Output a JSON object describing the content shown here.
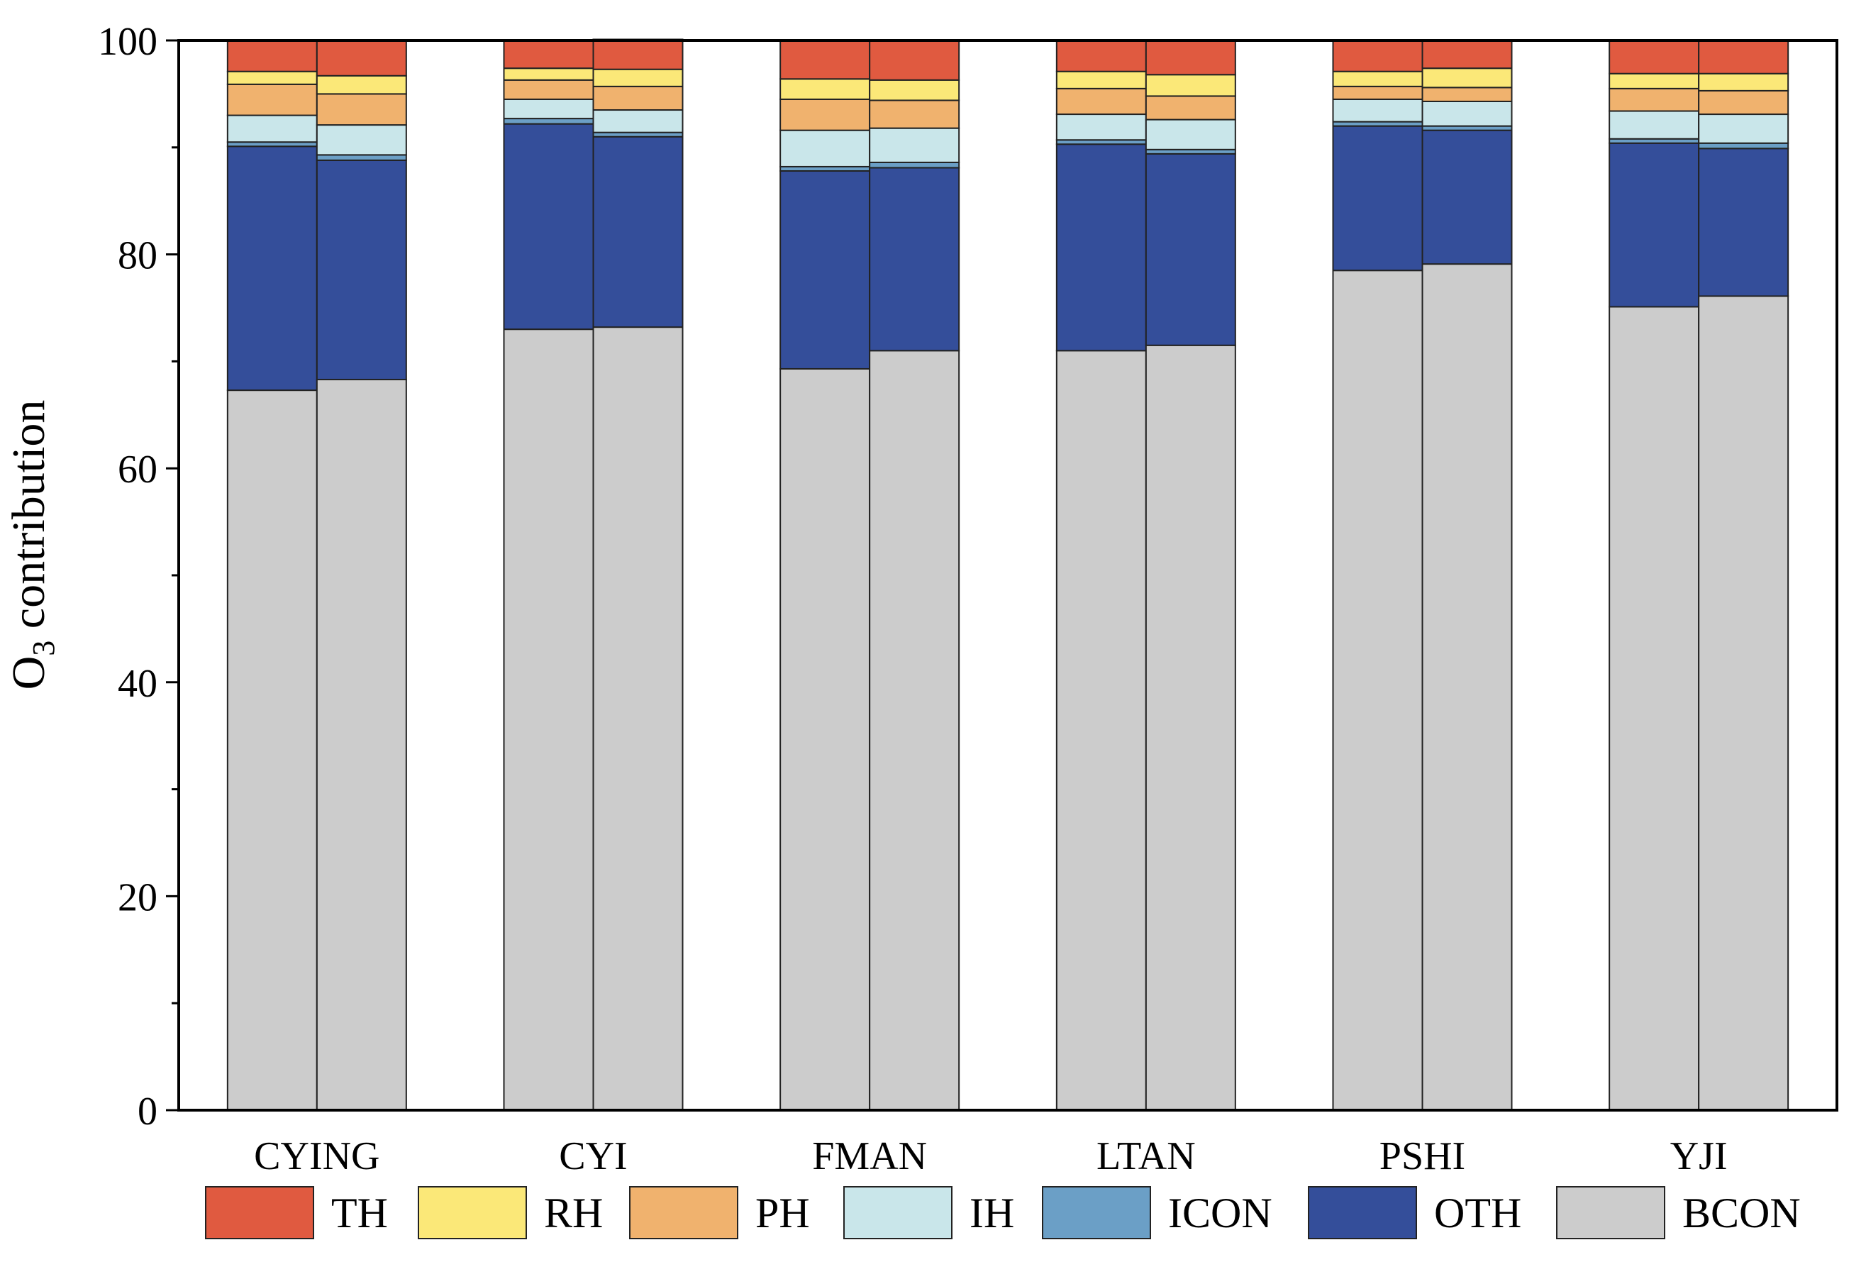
{
  "chart_data": {
    "type": "stacked-bar",
    "title": "",
    "xlabel": "",
    "ylabel": {
      "prefix": "O",
      "subscript": "3",
      "suffix": " contribution"
    },
    "ylim": [
      0,
      100
    ],
    "yticks": [
      0,
      20,
      40,
      60,
      80,
      100
    ],
    "categories": [
      "CYING",
      "CYI",
      "FMAN",
      "LTAN",
      "PSHI",
      "YJI"
    ],
    "bars_per_category": 2,
    "stack_order": [
      "BCON",
      "OTH",
      "ICON",
      "IH",
      "PH",
      "RH",
      "TH"
    ],
    "legend_order": [
      "TH",
      "RH",
      "PH",
      "IH",
      "ICON",
      "OTH",
      "BCON"
    ],
    "colors": {
      "TH": "#e05a40",
      "RH": "#fbe878",
      "PH": "#f0b26e",
      "IH": "#c9e6ea",
      "ICON": "#6b9fc6",
      "OTH": "#344e9a",
      "BCON": "#cccccc"
    },
    "series": [
      {
        "name": "BCON",
        "values": [
          [
            67.3,
            68.3
          ],
          [
            73.0,
            73.2
          ],
          [
            69.3,
            71.0
          ],
          [
            71.0,
            71.5
          ],
          [
            78.5,
            79.1
          ],
          [
            75.1,
            76.1
          ]
        ]
      },
      {
        "name": "OTH",
        "values": [
          [
            22.8,
            20.5
          ],
          [
            19.2,
            17.8
          ],
          [
            18.5,
            17.1
          ],
          [
            19.3,
            17.9
          ],
          [
            13.5,
            12.5
          ],
          [
            15.3,
            13.8
          ]
        ]
      },
      {
        "name": "ICON",
        "values": [
          [
            0.4,
            0.5
          ],
          [
            0.5,
            0.4
          ],
          [
            0.4,
            0.5
          ],
          [
            0.4,
            0.4
          ],
          [
            0.4,
            0.4
          ],
          [
            0.4,
            0.5
          ]
        ]
      },
      {
        "name": "IH",
        "values": [
          [
            2.5,
            2.8
          ],
          [
            1.8,
            2.1
          ],
          [
            3.4,
            3.2
          ],
          [
            2.4,
            2.8
          ],
          [
            2.1,
            2.3
          ],
          [
            2.6,
            2.7
          ]
        ]
      },
      {
        "name": "PH",
        "values": [
          [
            2.9,
            2.9
          ],
          [
            1.8,
            2.2
          ],
          [
            2.9,
            2.6
          ],
          [
            2.4,
            2.2
          ],
          [
            1.2,
            1.3
          ],
          [
            2.1,
            2.2
          ]
        ]
      },
      {
        "name": "RH",
        "values": [
          [
            1.2,
            1.7
          ],
          [
            1.1,
            1.6
          ],
          [
            1.9,
            1.9
          ],
          [
            1.6,
            2.0
          ],
          [
            1.4,
            1.8
          ],
          [
            1.4,
            1.6
          ]
        ]
      },
      {
        "name": "TH",
        "values": [
          [
            2.9,
            3.3
          ],
          [
            2.6,
            2.8
          ],
          [
            3.6,
            3.7
          ],
          [
            2.9,
            3.2
          ],
          [
            2.9,
            2.6
          ],
          [
            3.1,
            3.1
          ]
        ]
      }
    ],
    "legend_position": "bottom",
    "grid": false
  }
}
